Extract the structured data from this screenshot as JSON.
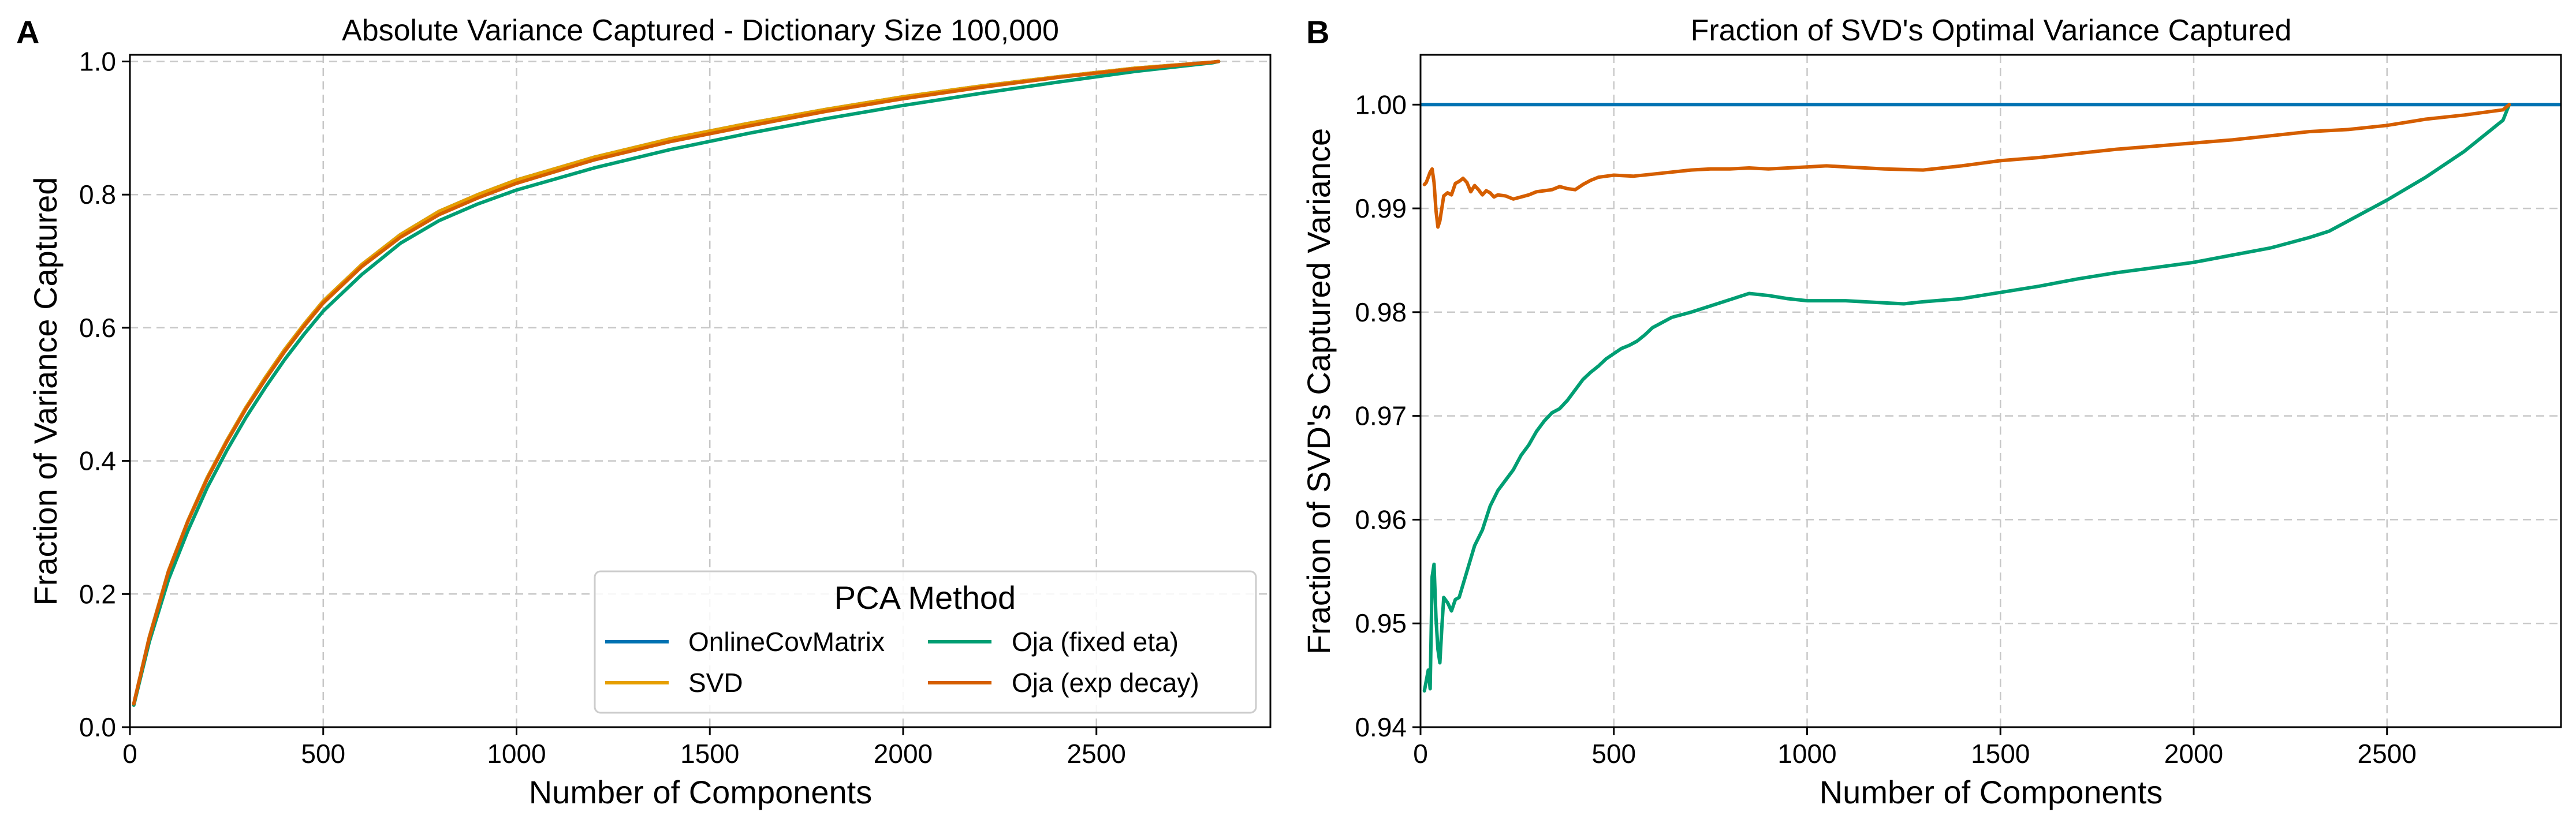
{
  "chart_data": [
    {
      "panel": "A",
      "type": "line",
      "title": "Absolute Variance Captured - Dictionary Size 100,000",
      "xlabel": "Number of Components",
      "ylabel": "Fraction of Variance Captured",
      "xlim": [
        0,
        2950
      ],
      "ylim": [
        0,
        1.01
      ],
      "xticks": [
        0,
        500,
        1000,
        1500,
        2000,
        2500
      ],
      "yticks": [
        0.0,
        0.2,
        0.4,
        0.6,
        0.8,
        1.0
      ],
      "xtick_labels": [
        "0",
        "500",
        "1000",
        "1500",
        "2000",
        "2500"
      ],
      "ytick_labels": [
        "0.0",
        "0.2",
        "0.4",
        "0.6",
        "0.8",
        "1.0"
      ],
      "grid": true,
      "legend": {
        "title": "PCA Method",
        "placement": "lower-right",
        "columns": 2,
        "entries": [
          "OnlineCovMatrix",
          "Oja (fixed eta)",
          "SVD",
          "Oja (exp decay)"
        ]
      },
      "series": [
        {
          "name": "OnlineCovMatrix",
          "color": "#0072b2",
          "x": [
            10,
            50,
            100,
            150,
            200,
            250,
            300,
            350,
            400,
            450,
            500,
            600,
            700,
            800,
            900,
            1000,
            1200,
            1400,
            1600,
            1800,
            2000,
            2200,
            2400,
            2600,
            2800,
            2816
          ],
          "y": [
            0.035,
            0.135,
            0.235,
            0.31,
            0.375,
            0.43,
            0.48,
            0.525,
            0.567,
            0.605,
            0.64,
            0.695,
            0.74,
            0.775,
            0.8,
            0.822,
            0.856,
            0.884,
            0.907,
            0.928,
            0.947,
            0.963,
            0.977,
            0.99,
            0.999,
            1.0
          ]
        },
        {
          "name": "SVD",
          "color": "#e69f00",
          "x": [
            10,
            50,
            100,
            150,
            200,
            250,
            300,
            350,
            400,
            450,
            500,
            600,
            700,
            800,
            900,
            1000,
            1200,
            1400,
            1600,
            1800,
            2000,
            2200,
            2400,
            2600,
            2800,
            2816
          ],
          "y": [
            0.035,
            0.135,
            0.235,
            0.31,
            0.375,
            0.43,
            0.48,
            0.525,
            0.567,
            0.605,
            0.64,
            0.695,
            0.74,
            0.775,
            0.8,
            0.822,
            0.856,
            0.884,
            0.907,
            0.928,
            0.947,
            0.963,
            0.977,
            0.99,
            0.999,
            1.0
          ]
        },
        {
          "name": "Oja (fixed eta)",
          "color": "#009e73",
          "x": [
            10,
            50,
            100,
            150,
            200,
            250,
            300,
            350,
            400,
            450,
            500,
            600,
            700,
            800,
            900,
            1000,
            1200,
            1400,
            1600,
            1800,
            2000,
            2200,
            2400,
            2600,
            2800,
            2816
          ],
          "y": [
            0.033,
            0.128,
            0.222,
            0.295,
            0.36,
            0.415,
            0.465,
            0.51,
            0.552,
            0.59,
            0.625,
            0.68,
            0.727,
            0.761,
            0.786,
            0.807,
            0.84,
            0.868,
            0.892,
            0.914,
            0.934,
            0.952,
            0.969,
            0.985,
            0.998,
            1.0
          ]
        },
        {
          "name": "Oja (exp decay)",
          "color": "#d55e00",
          "x": [
            10,
            50,
            100,
            150,
            200,
            250,
            300,
            350,
            400,
            450,
            500,
            600,
            700,
            800,
            900,
            1000,
            1200,
            1400,
            1600,
            1800,
            2000,
            2200,
            2400,
            2600,
            2800,
            2816
          ],
          "y": [
            0.035,
            0.134,
            0.234,
            0.309,
            0.373,
            0.428,
            0.478,
            0.522,
            0.564,
            0.602,
            0.637,
            0.692,
            0.736,
            0.77,
            0.795,
            0.817,
            0.852,
            0.88,
            0.903,
            0.925,
            0.944,
            0.961,
            0.976,
            0.989,
            0.999,
            1.0
          ]
        }
      ]
    },
    {
      "panel": "B",
      "type": "line",
      "title": "Fraction of SVD's Optimal Variance Captured",
      "xlabel": "Number of Components",
      "ylabel": "Fraction of SVD's Captured Variance",
      "xlim": [
        0,
        2950
      ],
      "ylim": [
        0.94,
        1.0048
      ],
      "xticks": [
        0,
        500,
        1000,
        1500,
        2000,
        2500
      ],
      "yticks": [
        0.94,
        0.95,
        0.96,
        0.97,
        0.98,
        0.99,
        1.0
      ],
      "xtick_labels": [
        "0",
        "500",
        "1000",
        "1500",
        "2000",
        "2500"
      ],
      "ytick_labels": [
        "0.94",
        "0.95",
        "0.96",
        "0.97",
        "0.98",
        "0.99",
        "1.00"
      ],
      "grid": true,
      "series": [
        {
          "name": "OnlineCovMatrix",
          "color": "#0072b2",
          "x": [
            0,
            2950
          ],
          "y": [
            1.0,
            1.0
          ]
        },
        {
          "name": "Oja (fixed eta)",
          "color": "#009e73",
          "x": [
            10,
            20,
            25,
            30,
            35,
            40,
            45,
            50,
            55,
            60,
            70,
            80,
            90,
            100,
            120,
            140,
            160,
            180,
            200,
            220,
            240,
            260,
            280,
            300,
            320,
            340,
            360,
            380,
            400,
            420,
            440,
            460,
            480,
            500,
            520,
            540,
            560,
            580,
            600,
            650,
            700,
            750,
            800,
            850,
            900,
            950,
            1000,
            1100,
            1200,
            1250,
            1300,
            1400,
            1500,
            1600,
            1700,
            1800,
            1900,
            2000,
            2100,
            2200,
            2300,
            2350,
            2400,
            2500,
            2600,
            2700,
            2800,
            2816
          ],
          "y": [
            0.9435,
            0.9455,
            0.9437,
            0.9545,
            0.9557,
            0.9505,
            0.9475,
            0.9462,
            0.9495,
            0.9525,
            0.952,
            0.9512,
            0.9523,
            0.9525,
            0.955,
            0.9575,
            0.959,
            0.9613,
            0.9628,
            0.9638,
            0.9648,
            0.9662,
            0.9672,
            0.9685,
            0.9695,
            0.9703,
            0.9707,
            0.9715,
            0.9725,
            0.9735,
            0.9742,
            0.9748,
            0.9755,
            0.976,
            0.9765,
            0.9768,
            0.9772,
            0.9778,
            0.9785,
            0.9795,
            0.98,
            0.9806,
            0.9812,
            0.9818,
            0.9816,
            0.9813,
            0.9811,
            0.9811,
            0.9809,
            0.9808,
            0.981,
            0.9813,
            0.9819,
            0.9825,
            0.9832,
            0.9838,
            0.9843,
            0.9848,
            0.9855,
            0.9862,
            0.9872,
            0.9878,
            0.9888,
            0.9908,
            0.993,
            0.9955,
            0.9985,
            1.0
          ]
        },
        {
          "name": "Oja (exp decay)",
          "color": "#d55e00",
          "x": [
            10,
            15,
            20,
            25,
            30,
            35,
            40,
            45,
            50,
            60,
            70,
            80,
            90,
            100,
            110,
            120,
            130,
            140,
            150,
            160,
            170,
            180,
            190,
            200,
            220,
            240,
            260,
            280,
            300,
            320,
            340,
            360,
            380,
            400,
            420,
            440,
            460,
            480,
            500,
            550,
            600,
            650,
            700,
            750,
            800,
            850,
            900,
            950,
            1000,
            1050,
            1100,
            1200,
            1300,
            1400,
            1500,
            1600,
            1700,
            1800,
            1900,
            2000,
            2100,
            2200,
            2300,
            2400,
            2500,
            2600,
            2700,
            2800,
            2816
          ],
          "y": [
            0.9923,
            0.9925,
            0.993,
            0.9935,
            0.9938,
            0.9925,
            0.9898,
            0.9882,
            0.9888,
            0.9912,
            0.9915,
            0.9913,
            0.9924,
            0.9926,
            0.9929,
            0.9925,
            0.9916,
            0.9922,
            0.9918,
            0.9913,
            0.9917,
            0.9915,
            0.9911,
            0.9913,
            0.9912,
            0.9909,
            0.9911,
            0.9913,
            0.9916,
            0.9917,
            0.9918,
            0.9921,
            0.9919,
            0.9918,
            0.9923,
            0.9927,
            0.993,
            0.9931,
            0.9932,
            0.9931,
            0.9933,
            0.9935,
            0.9937,
            0.9938,
            0.9938,
            0.9939,
            0.9938,
            0.9939,
            0.994,
            0.9941,
            0.994,
            0.9938,
            0.9937,
            0.9941,
            0.9946,
            0.9949,
            0.9953,
            0.9957,
            0.996,
            0.9963,
            0.9966,
            0.997,
            0.9974,
            0.9976,
            0.998,
            0.9986,
            0.999,
            0.9995,
            1.0
          ]
        }
      ]
    }
  ]
}
